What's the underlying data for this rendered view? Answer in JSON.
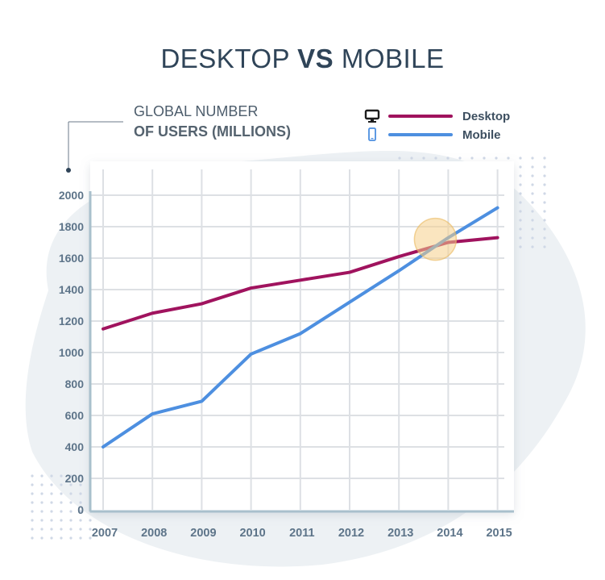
{
  "title": {
    "part1": "DESKTOP",
    "part2": "VS",
    "part3": "MOBILE"
  },
  "ylabel": {
    "line1": "GLOBAL NUMBER",
    "line2": "OF USERS (MILLIONS)"
  },
  "legend": {
    "desktop": {
      "label": "Desktop",
      "icon": "monitor-icon",
      "color": "#a0135e"
    },
    "mobile": {
      "label": "Mobile",
      "icon": "smartphone-icon",
      "color": "#4d8fe0"
    }
  },
  "chart_data": {
    "type": "line",
    "categories": [
      "2007",
      "2008",
      "2009",
      "2010",
      "2011",
      "2012",
      "2013",
      "2014",
      "2015"
    ],
    "series": [
      {
        "name": "Desktop",
        "color": "#a0135e",
        "values": [
          1150,
          1250,
          1310,
          1410,
          1460,
          1510,
          1610,
          1700,
          1730
        ]
      },
      {
        "name": "Mobile",
        "color": "#4d8fe0",
        "values": [
          400,
          610,
          690,
          990,
          1120,
          1320,
          1520,
          1730,
          1920
        ]
      }
    ],
    "yticks": [
      "2000",
      "1800",
      "1600",
      "1400",
      "1200",
      "1000",
      "800",
      "600",
      "400",
      "200",
      "0"
    ],
    "ylim": [
      0,
      2000
    ],
    "highlight": {
      "category": "2014",
      "note": "crossover"
    },
    "grid": true
  }
}
